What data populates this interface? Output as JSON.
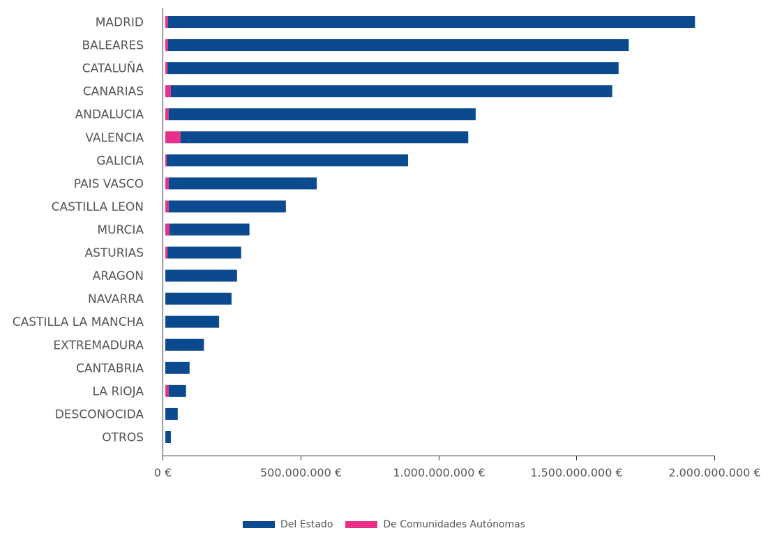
{
  "chart_data": {
    "type": "bar",
    "orientation": "horizontal",
    "stacked": true,
    "categories": [
      "MADRID",
      "BALEARES",
      "CATALUÑA",
      "CANARIAS",
      "ANDALUCIA",
      "VALENCIA",
      "GALICIA",
      "PAIS VASCO",
      "CASTILLA LEON",
      "MURCIA",
      "ASTURIAS",
      "ARAGON",
      "NAVARRA",
      "CASTILLA LA MANCHA",
      "EXTREMADURA",
      "CANTABRIA",
      "LA RIOJA",
      "DESCONOCIDA",
      "OTROS"
    ],
    "series": [
      {
        "name": "De Comunidades Autónomas",
        "color": "#e8308a",
        "values": [
          10000000,
          10000000,
          8000000,
          20000000,
          12000000,
          55000000,
          5000000,
          12000000,
          12000000,
          15000000,
          8000000,
          0,
          0,
          0,
          0,
          0,
          12000000,
          0,
          0
        ]
      },
      {
        "name": "Del Estado",
        "color": "#0b4a8f",
        "values": [
          1910000000,
          1670000000,
          1635000000,
          1600000000,
          1113000000,
          1043000000,
          875000000,
          537000000,
          425000000,
          290000000,
          267000000,
          260000000,
          240000000,
          195000000,
          140000000,
          88000000,
          63000000,
          45000000,
          20000000
        ]
      }
    ],
    "stack_order": [
      "De Comunidades Autónomas",
      "Del Estado"
    ],
    "xlim": [
      0,
      2000000000
    ],
    "x_ticks": [
      0,
      500000000,
      1000000000,
      1500000000,
      2000000000
    ],
    "x_tick_labels": [
      "0 €",
      "500.000.000 €",
      "1.000.000.000 €",
      "1.500.000.000 €",
      "2.000.000.000 €"
    ],
    "legend_position": "bottom-center",
    "legend_order": [
      "Del Estado",
      "De Comunidades Autónomas"
    ],
    "grid": false
  }
}
